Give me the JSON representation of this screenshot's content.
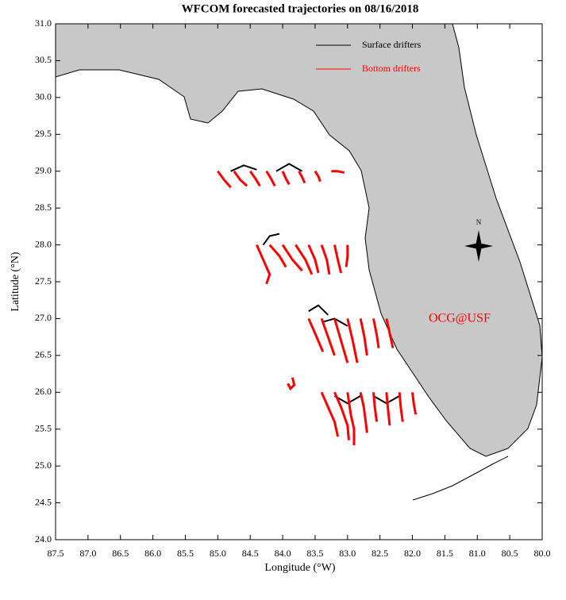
{
  "chart_data": {
    "type": "trajectory",
    "title": "WFCOM forecasted trajectories on 08/16/2018",
    "xlabel": "Longitude (°W)",
    "ylabel": "Latitude (°N)",
    "xlim": [
      87.5,
      80.0
    ],
    "ylim": [
      24.0,
      31.0
    ],
    "xticks": [
      87.5,
      {
        "value": 87,
        "label": "87.0"
      },
      86.5,
      {
        "value": 86,
        "label": "86.0"
      },
      85.5,
      {
        "value": 85,
        "label": "85.0"
      },
      84.5,
      {
        "value": 84,
        "label": "84.0"
      },
      83.5,
      {
        "value": 83,
        "label": "83.0"
      },
      82.5,
      {
        "value": 82,
        "label": "82.0"
      },
      81.5,
      {
        "value": 81,
        "label": "81.0"
      },
      80.5,
      {
        "value": 80,
        "label": "80.0"
      }
    ],
    "yticks": [
      {
        "value": 24,
        "label": "24.0"
      },
      24.5,
      {
        "value": 25,
        "label": "25.0"
      },
      25.5,
      {
        "value": 26,
        "label": "26.0"
      },
      26.5,
      {
        "value": 27,
        "label": "27.0"
      },
      27.5,
      {
        "value": 28,
        "label": "28.0"
      },
      28.5,
      {
        "value": 29,
        "label": "29.0"
      },
      29.5,
      {
        "value": 30,
        "label": "30.0"
      },
      30.5,
      {
        "value": 31,
        "label": "31.0"
      }
    ],
    "annotation": "OCG@USF",
    "compass_label": "N",
    "series": [
      {
        "name": "Surface drifters",
        "color": "#000000",
        "tracks": [
          {
            "lon": [
              84.8,
              84.6,
              84.4
            ],
            "lat": [
              29.0,
              29.08,
              29.02
            ]
          },
          {
            "lon": [
              84.1,
              83.9,
              83.7
            ],
            "lat": [
              29.0,
              29.1,
              29.0
            ]
          },
          {
            "lon": [
              84.3,
              84.2,
              84.05
            ],
            "lat": [
              28.0,
              28.12,
              28.15
            ]
          },
          {
            "lon": [
              83.6,
              83.45,
              83.3
            ],
            "lat": [
              27.1,
              27.18,
              27.05
            ]
          },
          {
            "lon": [
              83.4,
              83.2,
              83.0
            ],
            "lat": [
              26.95,
              27.0,
              26.9
            ]
          },
          {
            "lon": [
              83.2,
              83.0,
              82.8
            ],
            "lat": [
              25.95,
              25.85,
              25.95
            ]
          },
          {
            "lon": [
              82.6,
              82.4,
              82.2
            ],
            "lat": [
              25.95,
              25.85,
              25.95
            ]
          }
        ]
      },
      {
        "name": "Bottom drifters",
        "color": "#ff0000",
        "tracks": [
          {
            "lon": [
              85.0,
              84.9,
              84.8
            ],
            "lat": [
              29.0,
              28.88,
              28.78
            ]
          },
          {
            "lon": [
              84.75,
              84.65,
              84.55
            ],
            "lat": [
              29.0,
              28.88,
              28.8
            ]
          },
          {
            "lon": [
              84.5,
              84.42,
              84.35
            ],
            "lat": [
              29.0,
              28.9,
              28.8
            ]
          },
          {
            "lon": [
              84.25,
              84.18,
              84.12
            ],
            "lat": [
              29.0,
              28.9,
              28.8
            ]
          },
          {
            "lon": [
              84.0,
              83.95,
              83.9
            ],
            "lat": [
              29.0,
              28.9,
              28.82
            ]
          },
          {
            "lon": [
              83.75,
              83.7,
              83.66
            ],
            "lat": [
              29.0,
              28.92,
              28.84
            ]
          },
          {
            "lon": [
              83.5,
              83.45,
              83.42
            ],
            "lat": [
              29.0,
              28.93,
              28.86
            ]
          },
          {
            "lon": [
              83.25,
              83.15,
              83.05
            ],
            "lat": [
              29.0,
              29.0,
              28.98
            ]
          },
          {
            "lon": [
              84.4,
              84.3,
              84.2,
              84.25
            ],
            "lat": [
              28.0,
              27.8,
              27.6,
              27.47
            ]
          },
          {
            "lon": [
              84.2,
              84.05,
              83.95
            ],
            "lat": [
              28.0,
              27.85,
              27.7
            ]
          },
          {
            "lon": [
              84.0,
              83.85,
              83.7
            ],
            "lat": [
              28.0,
              27.8,
              27.65
            ]
          },
          {
            "lon": [
              83.8,
              83.65,
              83.55
            ],
            "lat": [
              28.0,
              27.8,
              27.6
            ]
          },
          {
            "lon": [
              83.6,
              83.5,
              83.45
            ],
            "lat": [
              28.0,
              27.8,
              27.62
            ]
          },
          {
            "lon": [
              83.4,
              83.32,
              83.28
            ],
            "lat": [
              28.0,
              27.8,
              27.6
            ]
          },
          {
            "lon": [
              83.2,
              83.15,
              83.1
            ],
            "lat": [
              28.0,
              27.8,
              27.62
            ]
          },
          {
            "lon": [
              83.0,
              83.0,
              83.02
            ],
            "lat": [
              28.0,
              27.85,
              27.7
            ]
          },
          {
            "lon": [
              83.6,
              83.5,
              83.38
            ],
            "lat": [
              27.0,
              26.8,
              26.55
            ]
          },
          {
            "lon": [
              83.4,
              83.3,
              83.2
            ],
            "lat": [
              27.0,
              26.75,
              26.5
            ]
          },
          {
            "lon": [
              83.2,
              83.1,
              83.0
            ],
            "lat": [
              27.0,
              26.7,
              26.4
            ]
          },
          {
            "lon": [
              83.0,
              82.92,
              82.85
            ],
            "lat": [
              27.0,
              26.7,
              26.4
            ]
          },
          {
            "lon": [
              82.8,
              82.74,
              82.7
            ],
            "lat": [
              27.0,
              26.75,
              26.5
            ]
          },
          {
            "lon": [
              82.6,
              82.55,
              82.52
            ],
            "lat": [
              27.0,
              26.78,
              26.6
            ]
          },
          {
            "lon": [
              82.4,
              82.35,
              82.3
            ],
            "lat": [
              27.0,
              26.8,
              26.6
            ]
          },
          {
            "lon": [
              83.4,
              83.3,
              83.2,
              83.15
            ],
            "lat": [
              26.0,
              25.8,
              25.6,
              25.4
            ]
          },
          {
            "lon": [
              83.2,
              83.1,
              83.0,
              82.98
            ],
            "lat": [
              26.0,
              25.8,
              25.55,
              25.35
            ]
          },
          {
            "lon": [
              83.0,
              82.95,
              82.9,
              82.9
            ],
            "lat": [
              26.0,
              25.7,
              25.5,
              25.28
            ]
          },
          {
            "lon": [
              82.8,
              82.75,
              82.72,
              82.7
            ],
            "lat": [
              26.0,
              25.8,
              25.6,
              25.45
            ]
          },
          {
            "lon": [
              82.6,
              82.58,
              82.55
            ],
            "lat": [
              26.0,
              25.8,
              25.6
            ]
          },
          {
            "lon": [
              82.4,
              82.38,
              82.35
            ],
            "lat": [
              26.0,
              25.8,
              25.55
            ]
          },
          {
            "lon": [
              82.2,
              82.18,
              82.15
            ],
            "lat": [
              26.0,
              25.8,
              25.6
            ]
          },
          {
            "lon": [
              82.0,
              81.98,
              81.95
            ],
            "lat": [
              26.0,
              25.85,
              25.7
            ]
          },
          {
            "lon": [
              83.85,
              83.82,
              83.88,
              83.92
            ],
            "lat": [
              26.2,
              26.1,
              26.05,
              26.12
            ]
          }
        ]
      }
    ]
  }
}
